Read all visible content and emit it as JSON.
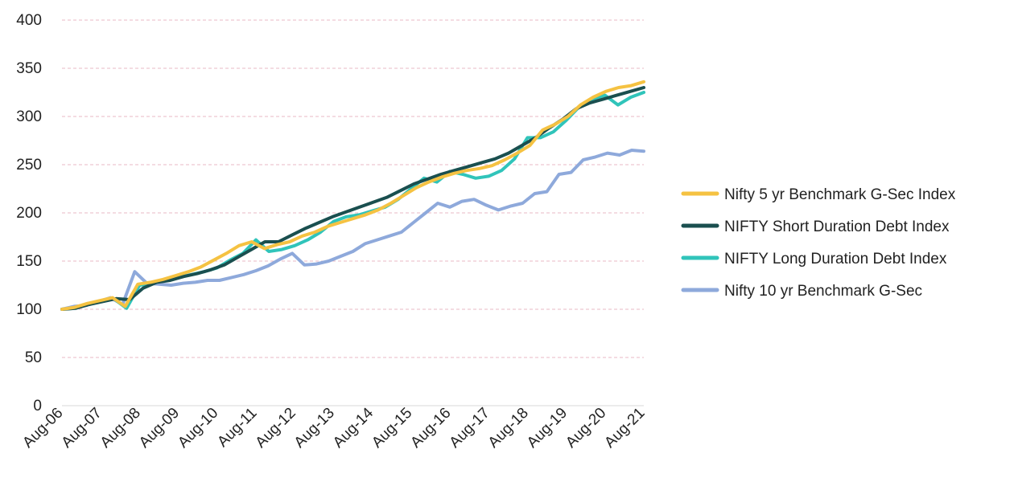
{
  "chart_data": {
    "type": "line",
    "title": "",
    "xlabel": "",
    "ylabel": "",
    "ylim": [
      0,
      400
    ],
    "y_ticks": [
      "0",
      "50",
      "100",
      "150",
      "200",
      "250",
      "300",
      "350",
      "400"
    ],
    "x_ticks": [
      "Aug-06",
      "Aug-07",
      "Aug-08",
      "Aug-09",
      "Aug-10",
      "Aug-11",
      "Aug-12",
      "Aug-13",
      "Aug-14",
      "Aug-15",
      "Aug-16",
      "Aug-17",
      "Aug-18",
      "Aug-19",
      "Aug-20",
      "Aug-21"
    ],
    "grid": "horizontal-dashed",
    "legend_position": "right",
    "series": [
      {
        "name": "Nifty 5 yr Benchmark G-Sec Index",
        "color": "#F5C242",
        "values": [
          100,
          102,
          106,
          109,
          112,
          103,
          126,
          128,
          131,
          135,
          139,
          144,
          151,
          158,
          166,
          170,
          163,
          167,
          170,
          176,
          180,
          186,
          190,
          194,
          198,
          203,
          210,
          218,
          226,
          232,
          237,
          241,
          244,
          246,
          249,
          255,
          262,
          270,
          286,
          292,
          300,
          312,
          320,
          326,
          330,
          332,
          336
        ]
      },
      {
        "name": "NIFTY Short Duration Debt Index",
        "color": "#1A4F4F",
        "values": [
          100,
          101,
          105,
          108,
          111,
          110,
          122,
          128,
          130,
          134,
          137,
          141,
          146,
          154,
          162,
          170,
          170,
          177,
          184,
          190,
          196,
          201,
          206,
          211,
          216,
          223,
          230,
          235,
          240,
          244,
          248,
          252,
          256,
          262,
          270,
          278,
          288,
          297,
          308,
          314,
          318,
          322,
          326,
          330
        ]
      },
      {
        "name": "NIFTY Long Duration Debt Index",
        "color": "#30C4BA",
        "values": [
          100,
          101,
          106,
          108,
          111,
          101,
          125,
          127,
          130,
          133,
          136,
          139,
          143,
          151,
          158,
          172,
          160,
          162,
          166,
          172,
          180,
          191,
          196,
          198,
          202,
          206,
          214,
          225,
          236,
          232,
          243,
          240,
          236,
          238,
          244,
          256,
          278,
          278,
          284,
          296,
          310,
          318,
          322,
          312,
          320,
          325
        ]
      },
      {
        "name": "Nifty 10 yr Benchmark G-Sec",
        "color": "#8EA9DB",
        "values": [
          100,
          103,
          104,
          108,
          112,
          105,
          139,
          127,
          126,
          125,
          127,
          128,
          130,
          130,
          133,
          136,
          140,
          145,
          152,
          158,
          146,
          147,
          150,
          155,
          160,
          168,
          172,
          176,
          180,
          190,
          200,
          210,
          206,
          212,
          214,
          208,
          203,
          207,
          210,
          220,
          222,
          240,
          242,
          255,
          258,
          262,
          260,
          265,
          264
        ]
      }
    ]
  }
}
